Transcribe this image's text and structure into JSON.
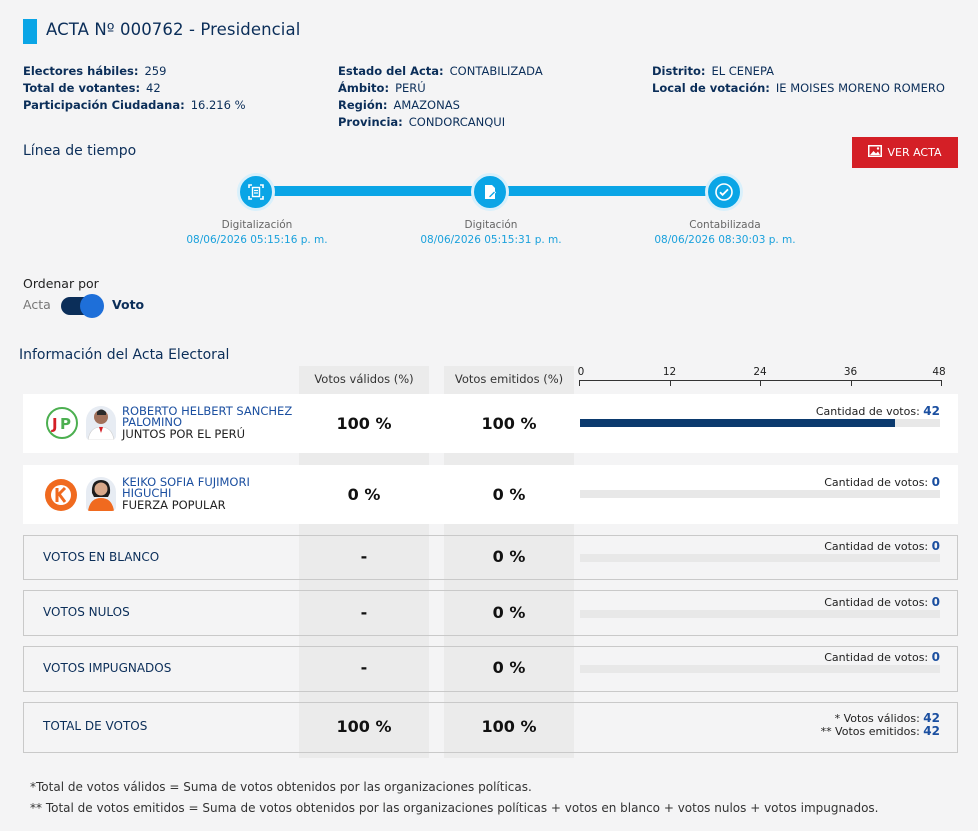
{
  "header": {
    "title": "ACTA Nº 000762 - Presidencial"
  },
  "info": {
    "col1": [
      {
        "k": "Electores hábiles:",
        "v": "259"
      },
      {
        "k": "Total de votantes:",
        "v": "42"
      },
      {
        "k": "Participación Ciudadana:",
        "v": "16.216 %"
      }
    ],
    "col2": [
      {
        "k": "Estado del Acta:",
        "v": "CONTABILIZADA"
      },
      {
        "k": "Ámbito:",
        "v": "PERÚ"
      },
      {
        "k": "Región:",
        "v": "AMAZONAS"
      },
      {
        "k": "Provincia:",
        "v": "CONDORCANQUI"
      }
    ],
    "col3": [
      {
        "k": "Distrito:",
        "v": "EL CENEPA"
      },
      {
        "k": "Local de votación:",
        "v": "IE MOISES MORENO ROMERO"
      }
    ]
  },
  "timeline": {
    "heading": "Línea de tiempo",
    "ver_acta": "VER ACTA",
    "steps": [
      {
        "label": "Digitalización",
        "date": "08/06/2026 05:15:16 p. m.",
        "icon": "document-scan-icon"
      },
      {
        "label": "Digitación",
        "date": "08/06/2026 05:15:31 p. m.",
        "icon": "document-edit-icon"
      },
      {
        "label": "Contabilizada",
        "date": "08/06/2026 08:30:03 p. m.",
        "icon": "check-circle-icon"
      }
    ]
  },
  "sort": {
    "label": "Ordenar por",
    "left": "Acta",
    "right": "Voto",
    "selected": "Voto"
  },
  "table": {
    "heading": "Información del Acta Electoral",
    "col_validos": "Votos válidos (%)",
    "col_emitidos": "Votos emitidos (%)",
    "axis_ticks": [
      "0",
      "12",
      "24",
      "36",
      "48"
    ],
    "axis_max": 48,
    "candidates": [
      {
        "name": "ROBERTO HELBERT SANCHEZ PALOMINO",
        "party": "JUNTOS POR EL PERÚ",
        "validos": "100 %",
        "emitidos": "100 %",
        "votes_label": "Cantidad de votos:",
        "votes": 42,
        "votes_text": "42"
      },
      {
        "name": "KEIKO SOFIA FUJIMORI HIGUCHI",
        "party": "FUERZA POPULAR",
        "validos": "0 %",
        "emitidos": "0 %",
        "votes_label": "Cantidad de votos:",
        "votes": 0,
        "votes_text": "0"
      }
    ],
    "others": [
      {
        "label": "VOTOS EN BLANCO",
        "validos": "-",
        "emitidos": "0 %",
        "votes_label": "Cantidad de votos:",
        "votes_text": "0"
      },
      {
        "label": "VOTOS NULOS",
        "validos": "-",
        "emitidos": "0 %",
        "votes_label": "Cantidad de votos:",
        "votes_text": "0"
      },
      {
        "label": "VOTOS IMPUGNADOS",
        "validos": "-",
        "emitidos": "0 %",
        "votes_label": "Cantidad de votos:",
        "votes_text": "0"
      }
    ],
    "total": {
      "label": "TOTAL DE VOTOS",
      "validos": "100 %",
      "emitidos": "100 %",
      "validos_label": "* Votos válidos:",
      "validos_value": "42",
      "emitidos_label": "** Votos emitidos:",
      "emitidos_value": "42"
    }
  },
  "footnotes": [
    "*Total de votos válidos = Suma de votos obtenidos por las organizaciones políticas.",
    "** Total de votos emitidos = Suma de votos obtenidos por las organizaciones políticas + votos en blanco + votos nulos + votos impugnados."
  ],
  "colors": {
    "accent": "#0aa5e6",
    "navy": "#0b2e59",
    "red": "#d41f26",
    "bar": "#0b3a6e"
  }
}
